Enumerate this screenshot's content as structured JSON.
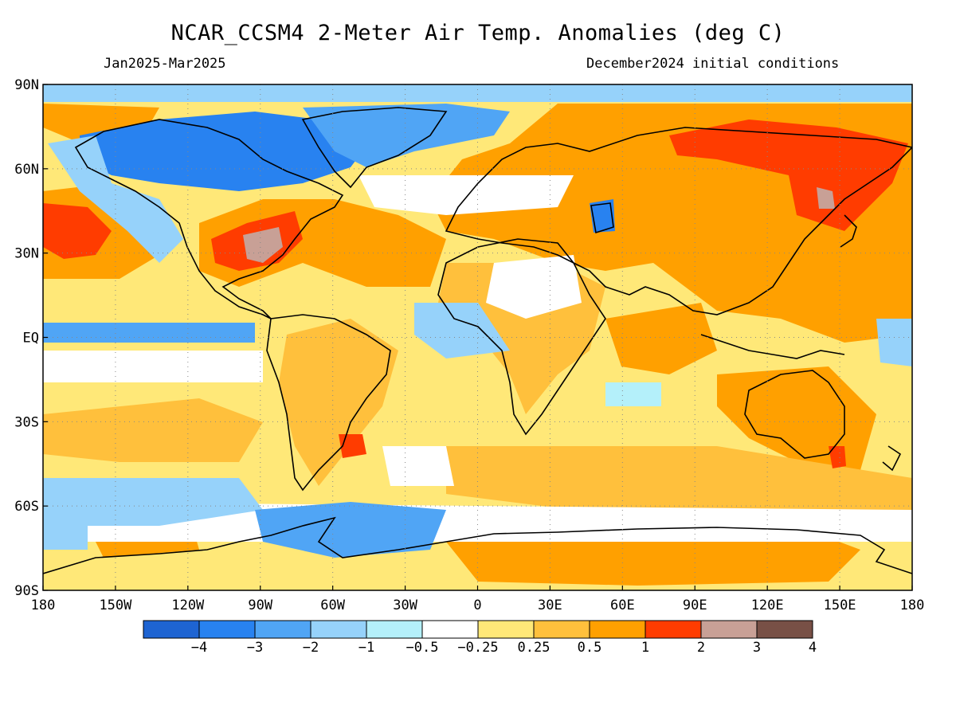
{
  "header": {
    "title": "NCAR_CCSM4 2-Meter Air Temp. Anomalies (deg C)",
    "period": "Jan2025-Mar2025",
    "init": "December2024 initial conditions"
  },
  "map": {
    "lon_range": [
      -180,
      180
    ],
    "lat_range": [
      -90,
      90
    ],
    "grid": true,
    "lon_ticks": [
      "180",
      "150W",
      "120W",
      "90W",
      "60W",
      "30W",
      "0",
      "30E",
      "60E",
      "90E",
      "120E",
      "150E",
      "180"
    ],
    "lat_ticks": [
      "90N",
      "60N",
      "30N",
      "EQ",
      "30S",
      "60S",
      "90S"
    ]
  },
  "colorbar": {
    "colors": [
      "#1e64d2",
      "#2882f0",
      "#50a5f5",
      "#96d2fa",
      "#b4f0fa",
      "#ffffff",
      "#ffe878",
      "#ffc03c",
      "#ffa000",
      "#ff3c00",
      "#c8a096",
      "#785046"
    ],
    "labels": [
      "−4",
      "−3",
      "−2",
      "−1",
      "−0.5",
      "−0.25",
      "0.25",
      "0.5",
      "1",
      "2",
      "3",
      "4"
    ]
  }
}
